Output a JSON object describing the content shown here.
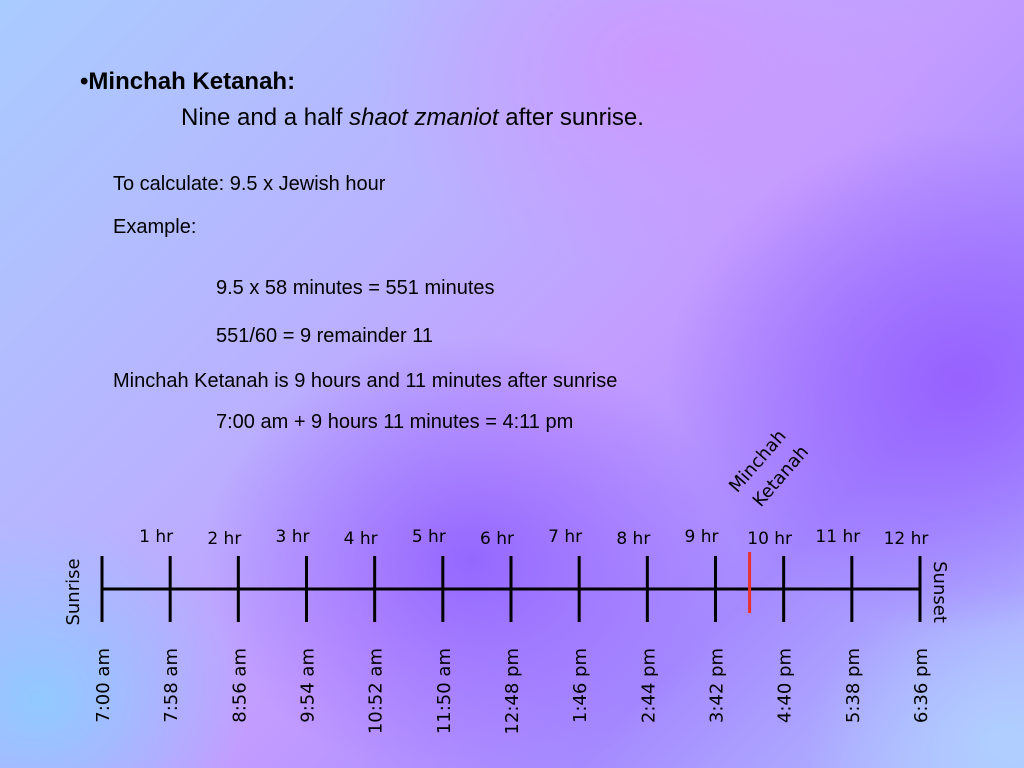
{
  "heading": "•Minchah Ketanah:",
  "subtitle": {
    "part1": "Nine and a half ",
    "italic": "shaot zmaniot",
    "part2": " after sunrise."
  },
  "lines": {
    "calc": "To calculate:  9.5 x Jewish hour",
    "example": "Example:",
    "eq1": "9.5 x 58 minutes = 551 minutes",
    "eq2": "551/60 = 9 remainder 11",
    "result": "Minchah Ketanah is 9 hours and 11 minutes after sunrise",
    "final": "7:00 am + 9 hours 11 minutes = 4:11 pm"
  },
  "timeline": {
    "start_label": "Sunrise",
    "end_label": "Sunset",
    "marker_label": [
      "Minchah",
      "Ketanah"
    ],
    "marker_hours": 9.5,
    "marker_color": "#e8322e",
    "line_color": "#000000",
    "hour_labels": [
      "1 hr",
      "2 hr",
      "3 hr",
      "4 hr",
      "5 hr",
      "6 hr",
      "7 hr",
      "8 hr",
      "9 hr",
      "10 hr",
      "11 hr",
      "12 hr"
    ],
    "times": [
      "7:00 am",
      "7:58 am",
      "8:56 am",
      "9:54 am",
      "10:52 am",
      "11:50 am",
      "12:48 pm",
      "1:46 pm",
      "2:44 pm",
      "3:42 pm",
      "4:40 pm",
      "5:38 pm",
      "6:36 pm"
    ]
  }
}
